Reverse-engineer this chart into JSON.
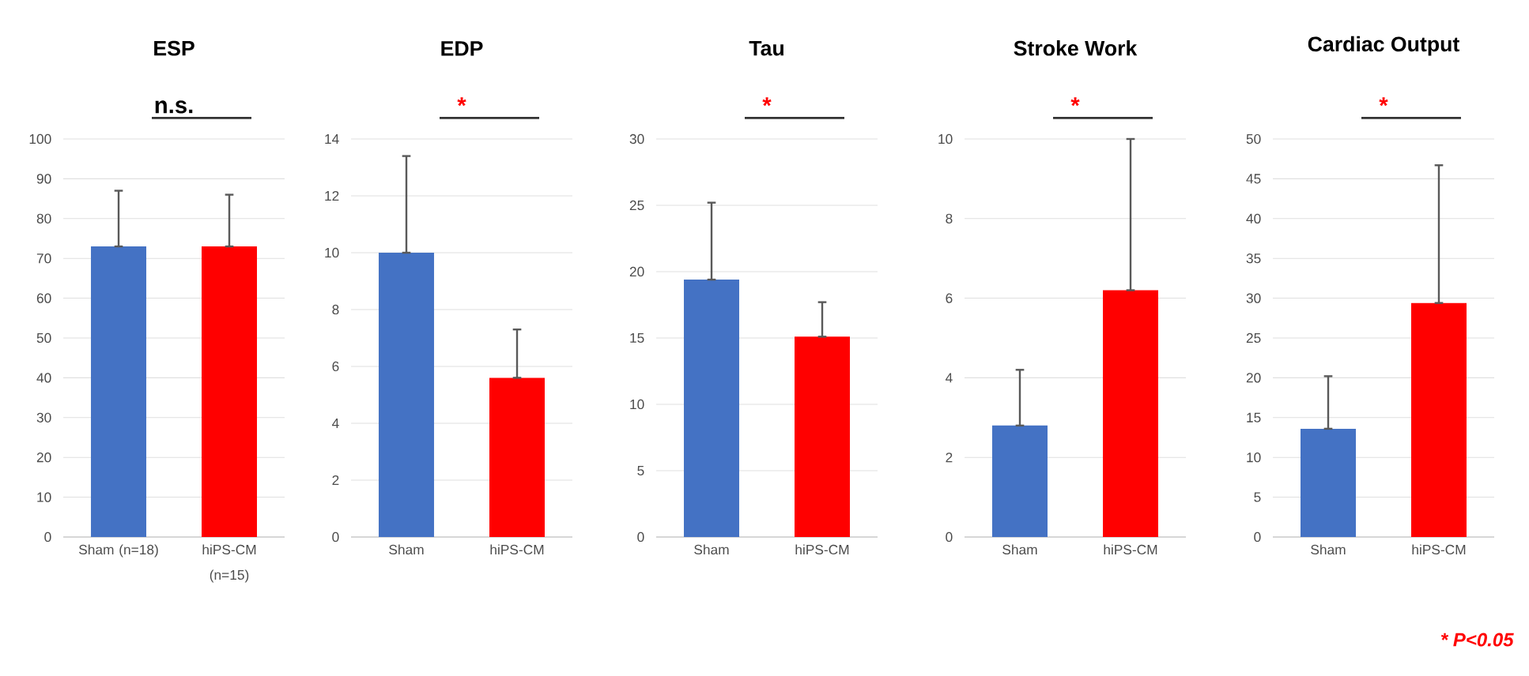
{
  "chart_data": [
    {
      "type": "bar",
      "title": "ESP",
      "categories": [
        "Sham (n=18)",
        "hiPS-CM (n=15)"
      ],
      "values": [
        73,
        73
      ],
      "colors": [
        "#4472c4",
        "#ff0000"
      ],
      "errors": [
        [
          73,
          87
        ],
        [
          73,
          86
        ]
      ],
      "ylim": [
        0,
        100
      ],
      "yticks": [
        0,
        10,
        20,
        30,
        40,
        50,
        60,
        70,
        80,
        90,
        100
      ],
      "grid": "y",
      "annotations": [
        "n.s."
      ]
    },
    {
      "type": "bar",
      "title": "EDP",
      "categories": [
        "Sham",
        "hiPS-CM"
      ],
      "values": [
        10,
        5.6
      ],
      "colors": [
        "#4472c4",
        "#ff0000"
      ],
      "errors": [
        [
          10,
          13.4
        ],
        [
          5.6,
          7.3
        ]
      ],
      "ylim": [
        0,
        14
      ],
      "yticks": [
        0,
        2,
        4,
        6,
        8,
        10,
        12,
        14
      ],
      "grid": "y",
      "annotations": [
        "*"
      ]
    },
    {
      "type": "bar",
      "title": "Tau",
      "categories": [
        "Sham",
        "hiPS-CM"
      ],
      "values": [
        19.4,
        15.1
      ],
      "colors": [
        "#4472c4",
        "#ff0000"
      ],
      "errors": [
        [
          19.4,
          25.2
        ],
        [
          15.1,
          17.7
        ]
      ],
      "ylim": [
        0,
        30
      ],
      "yticks": [
        0,
        5,
        10,
        15,
        20,
        25,
        30
      ],
      "grid": "y",
      "annotations": [
        "*"
      ]
    },
    {
      "type": "bar",
      "title": "Stroke Work",
      "categories": [
        "Sham",
        "hiPS-CM"
      ],
      "values": [
        2.8,
        6.2
      ],
      "colors": [
        "#4472c4",
        "#ff0000"
      ],
      "errors": [
        [
          2.8,
          4.2
        ],
        [
          6.2,
          10
        ]
      ],
      "ylim": [
        0,
        10
      ],
      "yticks": [
        0,
        2,
        4,
        6,
        8,
        10
      ],
      "grid": "y",
      "annotations": [
        "*"
      ]
    },
    {
      "type": "bar",
      "title": "Cardiac Output",
      "categories": [
        "Sham",
        "hiPS-CM"
      ],
      "values": [
        13.6,
        29.4
      ],
      "colors": [
        "#4472c4",
        "#ff0000"
      ],
      "errors": [
        [
          13.6,
          20.2
        ],
        [
          29.4,
          46.7
        ]
      ],
      "ylim": [
        0,
        50
      ],
      "yticks": [
        0,
        5,
        10,
        15,
        20,
        25,
        30,
        35,
        40,
        45,
        50
      ],
      "grid": "y",
      "annotations": [
        "*",
        "* P<0.05"
      ]
    }
  ]
}
